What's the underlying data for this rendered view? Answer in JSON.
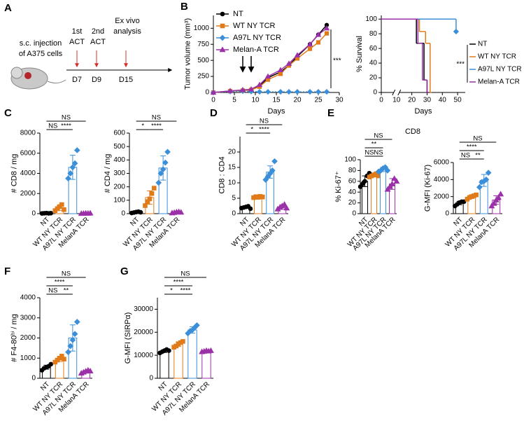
{
  "panel_labels": [
    "A",
    "B",
    "C",
    "D",
    "E",
    "F",
    "G"
  ],
  "schematic": {
    "injection": [
      "s.c. injection",
      "of A375 cells"
    ],
    "events": [
      {
        "lines": [
          "1st",
          "ACT"
        ],
        "day": "D7"
      },
      {
        "lines": [
          "2nd",
          "ACT"
        ],
        "day": "D9"
      },
      {
        "lines": [
          "Ex vivo",
          "analysis"
        ],
        "day": "D15"
      }
    ]
  },
  "e_title": "CD8",
  "chart_data": [
    {
      "type": "line",
      "xlabel": "Days",
      "ylabel": "Tumor volume (mm³)",
      "x": [
        0,
        4,
        7,
        9,
        11,
        13,
        16,
        18,
        20,
        23,
        25,
        27
      ],
      "xlim": [
        0,
        30
      ],
      "xticks": [
        0,
        5,
        10,
        15,
        20,
        25,
        30
      ],
      "ylim": [
        0,
        1200
      ],
      "yticks": [
        0,
        250,
        500,
        750,
        1000
      ],
      "arrows_at": [
        7,
        9
      ],
      "annotation": "***",
      "series": [
        {
          "name": "NT",
          "color": "#000000",
          "values": [
            0,
            20,
            30,
            40,
            100,
            230,
            320,
            420,
            560,
            750,
            900,
            1050
          ]
        },
        {
          "name": "WT NY TCR",
          "color": "#e07b1a",
          "values": [
            0,
            20,
            30,
            40,
            90,
            200,
            290,
            420,
            530,
            680,
            780,
            920
          ]
        },
        {
          "name": "A97L NY TCR",
          "color": "#3b8fd9",
          "values": [
            0,
            15,
            20,
            15,
            10,
            10,
            10,
            10,
            10,
            10,
            10,
            10
          ]
        },
        {
          "name": "Melan-A TCR",
          "color": "#9b30a8",
          "values": [
            0,
            25,
            40,
            50,
            120,
            250,
            350,
            450,
            580,
            750,
            900,
            1000
          ]
        }
      ]
    },
    {
      "type": "survival",
      "xlabel": "Days",
      "ylabel": "% Survival",
      "xlim": [
        0,
        55
      ],
      "xticks": [
        0,
        10,
        20,
        30,
        40,
        50
      ],
      "ylim": [
        0,
        105
      ],
      "yticks": [
        0,
        20,
        40,
        60,
        80,
        100
      ],
      "annotation": "***",
      "series": [
        {
          "name": "NT",
          "color": "#000000",
          "x": [
            0,
            23,
            28,
            30
          ],
          "values": [
            100,
            67,
            17,
            0
          ]
        },
        {
          "name": "WT NY TCR",
          "color": "#e07b1a",
          "x": [
            0,
            25,
            29,
            32
          ],
          "values": [
            100,
            83,
            67,
            0
          ]
        },
        {
          "name": "A97L NY TCR",
          "color": "#3b8fd9",
          "x": [
            0,
            49
          ],
          "values": [
            100,
            83
          ]
        },
        {
          "name": "Melan-A TCR",
          "color": "#9b30a8",
          "x": [
            0,
            24,
            27,
            30
          ],
          "values": [
            100,
            67,
            17,
            0
          ]
        }
      ]
    },
    {
      "type": "bar",
      "ylabel": "# CD8 / mg",
      "categories": [
        "NT",
        "WT NY TCR",
        "A97L NY TCR",
        "MelanA TCR"
      ],
      "colors": [
        "#000000",
        "#e07b1a",
        "#3b8fd9",
        "#9b30a8"
      ],
      "ylim": [
        0,
        8000
      ],
      "yticks": [
        0,
        2000,
        4000,
        6000,
        8000
      ],
      "values": [
        50,
        550,
        4600,
        30
      ],
      "errors": [
        20,
        250,
        1200,
        15
      ],
      "points": [
        [
          20,
          40,
          60,
          30,
          50
        ],
        [
          300,
          500,
          700,
          900,
          400
        ],
        [
          3500,
          4000,
          4600,
          5000,
          6300
        ],
        [
          10,
          20,
          40,
          30,
          50
        ]
      ],
      "brackets": [
        {
          "label": "NS",
          "between": [
            "NT",
            "WT NY TCR"
          ]
        },
        {
          "label": "****",
          "between": [
            "WT NY TCR",
            "A97L NY TCR"
          ]
        },
        {
          "label": "NS",
          "between": [
            "NT",
            "MelanA TCR"
          ]
        }
      ]
    },
    {
      "type": "bar",
      "ylabel": "# CD4 / mg",
      "categories": [
        "NT",
        "WT NY TCR",
        "A97L NY TCR",
        "MelanA TCR"
      ],
      "colors": [
        "#000000",
        "#e07b1a",
        "#3b8fd9",
        "#9b30a8"
      ],
      "ylim": [
        0,
        600
      ],
      "yticks": [
        0,
        100,
        200,
        300,
        400,
        500,
        600
      ],
      "values": [
        10,
        120,
        340,
        10
      ],
      "errors": [
        4,
        50,
        90,
        4
      ],
      "points": [
        [
          5,
          8,
          12,
          15,
          10
        ],
        [
          60,
          90,
          110,
          150,
          190
        ],
        [
          230,
          300,
          330,
          380,
          460
        ],
        [
          5,
          8,
          12,
          14,
          10
        ]
      ],
      "brackets": [
        {
          "label": "*",
          "between": [
            "NT",
            "WT NY TCR"
          ]
        },
        {
          "label": "****",
          "between": [
            "WT NY TCR",
            "A97L NY TCR"
          ]
        },
        {
          "label": "NS",
          "between": [
            "NT",
            "MelanA TCR"
          ]
        }
      ]
    },
    {
      "type": "bar",
      "ylabel": "CD8 : CD4",
      "categories": [
        "NT",
        "WT NY TCR",
        "A97L NY TCR",
        "MelanA TCR"
      ],
      "colors": [
        "#000000",
        "#e07b1a",
        "#3b8fd9",
        "#9b30a8"
      ],
      "ylim": [
        0,
        25
      ],
      "yticks": [
        0,
        5,
        10,
        15,
        20
      ],
      "values": [
        2,
        5.4,
        13.5,
        2.2
      ],
      "errors": [
        0.3,
        0.3,
        2,
        0.7
      ],
      "points": [
        [
          1.8,
          2,
          2.2,
          2.4,
          1.6
        ],
        [
          5.2,
          5.5,
          5.3,
          5.6,
          5.4
        ],
        [
          11,
          12,
          13,
          14,
          17
        ],
        [
          1.5,
          2,
          2.5,
          3,
          1.8
        ]
      ],
      "brackets": [
        {
          "label": "*",
          "between": [
            "NT",
            "WT NY TCR"
          ]
        },
        {
          "label": "****",
          "between": [
            "WT NY TCR",
            "A97L NY TCR"
          ]
        },
        {
          "label": "NS",
          "between": [
            "NT",
            "MelanA TCR"
          ]
        }
      ]
    },
    {
      "type": "bar",
      "ylabel": "% Ki-67⁺",
      "categories": [
        "NT",
        "WT NY TCR",
        "A97L NY TCR",
        "MelanA TCR"
      ],
      "colors": [
        "#000000",
        "#e07b1a",
        "#3b8fd9",
        "#9b30a8"
      ],
      "ylim": [
        0,
        100
      ],
      "yticks": [
        0,
        20,
        40,
        60,
        80,
        100
      ],
      "values": [
        60,
        71,
        82,
        55
      ],
      "errors": [
        10,
        3,
        4,
        10
      ],
      "points": [
        [
          50,
          55,
          60,
          70,
          75
        ],
        [
          68,
          70,
          72,
          74,
          70
        ],
        [
          78,
          80,
          84,
          86,
          80
        ],
        [
          45,
          50,
          55,
          65,
          60
        ]
      ],
      "brackets": [
        {
          "label": "NS",
          "between": [
            "NT",
            "WT NY TCR"
          ]
        },
        {
          "label": "NS",
          "between": [
            "WT NY TCR",
            "A97L NY TCR"
          ]
        },
        {
          "label": "**",
          "between": [
            "NT",
            "A97L NY TCR"
          ]
        },
        {
          "label": "NS",
          "between": [
            "NT",
            "MelanA TCR"
          ]
        }
      ]
    },
    {
      "type": "bar",
      "ylabel": "G-MFI (Ki-67)",
      "categories": [
        "NT",
        "WT NY TCR",
        "A97L NY TCR",
        "MelanA TCR"
      ],
      "colors": [
        "#000000",
        "#e07b1a",
        "#3b8fd9",
        "#9b30a8"
      ],
      "ylim": [
        0,
        6000
      ],
      "yticks": [
        0,
        2000,
        4000,
        6000
      ],
      "values": [
        1250,
        2000,
        3900,
        1600
      ],
      "errors": [
        200,
        200,
        700,
        500
      ],
      "points": [
        [
          900,
          1100,
          1300,
          1400,
          1400
        ],
        [
          1700,
          1900,
          2000,
          2100,
          2200
        ],
        [
          3100,
          3700,
          3800,
          4000,
          4800
        ],
        [
          900,
          1200,
          1600,
          1900,
          2300
        ]
      ],
      "brackets": [
        {
          "label": "NS",
          "between": [
            "NT",
            "WT NY TCR"
          ]
        },
        {
          "label": "**",
          "between": [
            "WT NY TCR",
            "A97L NY TCR"
          ]
        },
        {
          "label": "****",
          "between": [
            "NT",
            "A97L NY TCR"
          ]
        },
        {
          "label": "NS",
          "between": [
            "NT",
            "MelanA TCR"
          ]
        }
      ]
    },
    {
      "type": "bar",
      "ylabel": "# F4-80ʰⁱ / mg",
      "categories": [
        "NT",
        "WT NY TCR",
        "A97L NY TCR",
        "MelanA TCR"
      ],
      "colors": [
        "#000000",
        "#e07b1a",
        "#3b8fd9",
        "#9b30a8"
      ],
      "ylim": [
        0,
        4000
      ],
      "yticks": [
        0,
        1000,
        2000,
        3000,
        4000
      ],
      "values": [
        550,
        950,
        2000,
        330
      ],
      "errors": [
        100,
        120,
        650,
        60
      ],
      "points": [
        [
          400,
          500,
          550,
          600,
          700
        ],
        [
          800,
          900,
          1000,
          1100,
          950
        ],
        [
          1300,
          1600,
          1900,
          2200,
          2800
        ],
        [
          250,
          300,
          350,
          400,
          360
        ]
      ],
      "brackets": [
        {
          "label": "NS",
          "between": [
            "NT",
            "WT NY TCR"
          ]
        },
        {
          "label": "**",
          "between": [
            "WT NY TCR",
            "A97L NY TCR"
          ]
        },
        {
          "label": "****",
          "between": [
            "NT",
            "A97L NY TCR"
          ]
        },
        {
          "label": "NS",
          "between": [
            "NT",
            "MelanA TCR"
          ]
        }
      ]
    },
    {
      "type": "bar",
      "ylabel": "G-MFI (SIRPα)",
      "categories": [
        "NT",
        "WT NY TCR",
        "A97L NY TCR",
        "MelanA TCR"
      ],
      "colors": [
        "#000000",
        "#e07b1a",
        "#3b8fd9",
        "#9b30a8"
      ],
      "ylim": [
        0,
        35000
      ],
      "yticks": [
        0,
        10000,
        20000,
        30000
      ],
      "values": [
        11800,
        14800,
        21000,
        11800
      ],
      "errors": [
        600,
        1000,
        1400,
        250
      ],
      "points": [
        [
          11000,
          11500,
          12000,
          12500,
          12000
        ],
        [
          13500,
          14000,
          15000,
          15500,
          16000
        ],
        [
          19500,
          20500,
          21000,
          22000,
          23000
        ],
        [
          11500,
          11700,
          12000,
          11800,
          12000
        ]
      ],
      "brackets": [
        {
          "label": "*",
          "between": [
            "NT",
            "WT NY TCR"
          ]
        },
        {
          "label": "****",
          "between": [
            "WT NY TCR",
            "A97L NY TCR"
          ]
        },
        {
          "label": "****",
          "between": [
            "NT",
            "A97L NY TCR"
          ]
        },
        {
          "label": "NS",
          "between": [
            "NT",
            "MelanA TCR"
          ]
        }
      ]
    }
  ]
}
